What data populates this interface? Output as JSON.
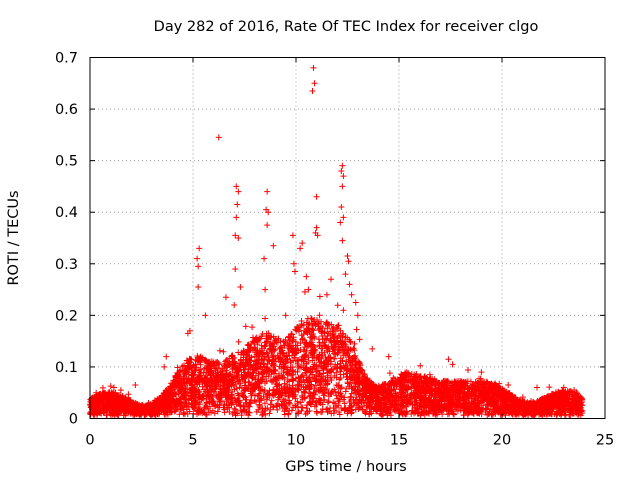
{
  "chart_data": {
    "type": "scatter",
    "title": "Day 282 of 2016, Rate Of TEC Index for receiver clgo",
    "xlabel": "GPS time / hours",
    "ylabel": "ROTI / TECUs",
    "xlim": [
      0,
      25
    ],
    "ylim": [
      0,
      0.7
    ],
    "x_ticks": [
      0,
      5,
      10,
      15,
      20,
      25
    ],
    "x_tick_labels": [
      "0",
      "5",
      "10",
      "15",
      "20",
      "25"
    ],
    "y_ticks": [
      0,
      0.1,
      0.2,
      0.3,
      0.4,
      0.5,
      0.6,
      0.7
    ],
    "y_tick_labels": [
      "0",
      "0.1",
      "0.2",
      "0.3",
      "0.4",
      "0.5",
      "0.6",
      "0.7"
    ],
    "grid": true,
    "marker": "+",
    "color": "#ff0000",
    "series": [
      {
        "name": "ROTI",
        "points": [
          [
            10.85,
            0.68
          ],
          [
            10.9,
            0.65
          ],
          [
            10.8,
            0.635
          ],
          [
            6.25,
            0.545
          ],
          [
            12.25,
            0.49
          ],
          [
            12.2,
            0.48
          ],
          [
            12.3,
            0.47
          ],
          [
            12.25,
            0.45
          ],
          [
            7.1,
            0.45
          ],
          [
            7.2,
            0.44
          ],
          [
            8.6,
            0.44
          ],
          [
            11.0,
            0.43
          ],
          [
            7.15,
            0.415
          ],
          [
            12.2,
            0.41
          ],
          [
            8.55,
            0.405
          ],
          [
            8.65,
            0.4
          ],
          [
            7.1,
            0.39
          ],
          [
            12.3,
            0.39
          ],
          [
            12.15,
            0.38
          ],
          [
            8.6,
            0.375
          ],
          [
            11.0,
            0.37
          ],
          [
            10.95,
            0.36
          ],
          [
            11.05,
            0.355
          ],
          [
            7.05,
            0.355
          ],
          [
            7.2,
            0.35
          ],
          [
            9.85,
            0.355
          ],
          [
            12.25,
            0.345
          ],
          [
            10.3,
            0.34
          ],
          [
            5.3,
            0.33
          ],
          [
            8.9,
            0.335
          ],
          [
            10.2,
            0.33
          ],
          [
            5.2,
            0.31
          ],
          [
            12.5,
            0.315
          ],
          [
            12.55,
            0.305
          ],
          [
            8.45,
            0.31
          ],
          [
            9.9,
            0.3
          ],
          [
            5.25,
            0.295
          ],
          [
            7.05,
            0.29
          ],
          [
            9.95,
            0.285
          ],
          [
            12.4,
            0.28
          ],
          [
            12.6,
            0.26
          ],
          [
            7.3,
            0.255
          ],
          [
            5.25,
            0.255
          ],
          [
            11.7,
            0.27
          ],
          [
            10.5,
            0.275
          ],
          [
            10.6,
            0.25
          ],
          [
            8.5,
            0.25
          ],
          [
            12.7,
            0.24
          ],
          [
            11.5,
            0.24
          ],
          [
            6.6,
            0.235
          ],
          [
            12.9,
            0.225
          ],
          [
            7.0,
            0.22
          ],
          [
            12.3,
            0.21
          ],
          [
            5.6,
            0.2
          ],
          [
            13.0,
            0.2
          ],
          [
            9.5,
            0.2
          ],
          [
            4.85,
            0.17
          ],
          [
            4.75,
            0.165
          ],
          [
            3.6,
            0.1
          ],
          [
            3.7,
            0.12
          ],
          [
            13.7,
            0.135
          ],
          [
            14.5,
            0.12
          ],
          [
            17.4,
            0.115
          ],
          [
            17.6,
            0.105
          ],
          [
            19.0,
            0.09
          ],
          [
            16.5,
            0.085
          ],
          [
            20.3,
            0.065
          ],
          [
            21.7,
            0.06
          ],
          [
            23.0,
            0.06
          ],
          [
            23.5,
            0.055
          ],
          [
            1.5,
            0.055
          ],
          [
            2.2,
            0.065
          ],
          [
            0.3,
            0.05
          ]
        ]
      }
    ]
  }
}
